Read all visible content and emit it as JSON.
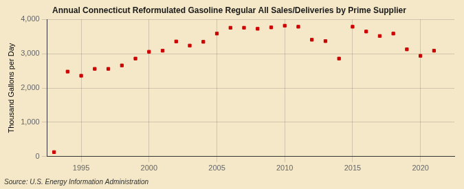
{
  "chart_data": {
    "type": "scatter",
    "title": "Annual Connecticut Reformulated Gasoline Regular All Sales/Deliveries by Prime Supplier",
    "y_label": "Thousand Gallons per Day",
    "source": "Source: U.S. Energy Information Administration",
    "x": [
      1993,
      1994,
      1995,
      1996,
      1997,
      1998,
      1999,
      2000,
      2001,
      2002,
      2003,
      2004,
      2005,
      2006,
      2007,
      2008,
      2009,
      2010,
      2011,
      2012,
      2013,
      2014,
      2015,
      2016,
      2017,
      2018,
      2019,
      2020,
      2021
    ],
    "values": [
      130,
      2480,
      2360,
      2560,
      2560,
      2660,
      2860,
      3060,
      3090,
      3360,
      3240,
      3350,
      3590,
      3760,
      3760,
      3730,
      3770,
      3820,
      3790,
      3410,
      3370,
      2860,
      3790,
      3650,
      3520,
      3590,
      3130,
      2940,
      3090
    ],
    "color": "#cc0000",
    "marker": "square",
    "xlim": [
      1992.5,
      2022.5
    ],
    "xticks": [
      1995,
      2000,
      2005,
      2010,
      2015,
      2020
    ],
    "ylim": [
      0,
      4000
    ],
    "yticks": [
      0,
      {
        "value": 1000,
        "label": "1,000"
      },
      {
        "value": 2000,
        "label": "2,000"
      },
      {
        "value": 3000,
        "label": "3,000"
      },
      {
        "value": 4000,
        "label": "4,000"
      }
    ],
    "grid": true
  }
}
